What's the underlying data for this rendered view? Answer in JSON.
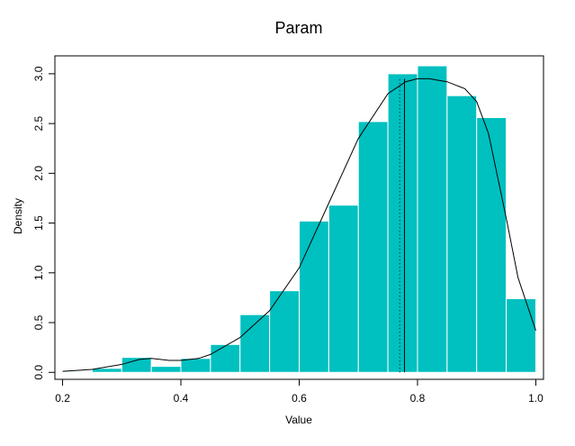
{
  "chart_data": {
    "type": "bar",
    "title": "Param",
    "xlabel": "Value",
    "ylabel": "Density",
    "xlim": [
      0.2,
      1.0
    ],
    "ylim": [
      -0.07,
      3.18
    ],
    "x_ticks": [
      0.2,
      0.4,
      0.6,
      0.8,
      1.0
    ],
    "x_tick_labels": [
      "0.2",
      "0.4",
      "0.6",
      "0.8",
      "1.0"
    ],
    "y_ticks": [
      0.0,
      0.5,
      1.0,
      1.5,
      2.0,
      2.5,
      3.0
    ],
    "y_tick_labels": [
      "0.0",
      "0.5",
      "1.0",
      "1.5",
      "2.0",
      "2.5",
      "3.0"
    ],
    "bar_color": "#00C0C0",
    "bar_edge_color": "#ffffff",
    "bins": [
      {
        "x0": 0.2,
        "x1": 0.25,
        "density": 0.01
      },
      {
        "x0": 0.25,
        "x1": 0.3,
        "density": 0.04
      },
      {
        "x0": 0.3,
        "x1": 0.35,
        "density": 0.15
      },
      {
        "x0": 0.35,
        "x1": 0.4,
        "density": 0.06
      },
      {
        "x0": 0.4,
        "x1": 0.45,
        "density": 0.14
      },
      {
        "x0": 0.45,
        "x1": 0.5,
        "density": 0.28
      },
      {
        "x0": 0.5,
        "x1": 0.55,
        "density": 0.58
      },
      {
        "x0": 0.55,
        "x1": 0.6,
        "density": 0.82
      },
      {
        "x0": 0.6,
        "x1": 0.65,
        "density": 1.52
      },
      {
        "x0": 0.65,
        "x1": 0.7,
        "density": 1.68
      },
      {
        "x0": 0.7,
        "x1": 0.75,
        "density": 2.52
      },
      {
        "x0": 0.75,
        "x1": 0.8,
        "density": 3.0
      },
      {
        "x0": 0.8,
        "x1": 0.85,
        "density": 3.08
      },
      {
        "x0": 0.85,
        "x1": 0.9,
        "density": 2.78
      },
      {
        "x0": 0.9,
        "x1": 0.95,
        "density": 2.56
      },
      {
        "x0": 0.95,
        "x1": 1.0,
        "density": 0.74
      }
    ],
    "density_curve": {
      "x": [
        0.2,
        0.25,
        0.3,
        0.33,
        0.35,
        0.38,
        0.4,
        0.43,
        0.45,
        0.5,
        0.55,
        0.6,
        0.65,
        0.7,
        0.75,
        0.78,
        0.8,
        0.82,
        0.85,
        0.88,
        0.9,
        0.92,
        0.95,
        0.97,
        1.0
      ],
      "y": [
        0.01,
        0.03,
        0.08,
        0.13,
        0.14,
        0.12,
        0.12,
        0.14,
        0.18,
        0.35,
        0.62,
        1.05,
        1.7,
        2.35,
        2.8,
        2.92,
        2.95,
        2.95,
        2.92,
        2.85,
        2.72,
        2.4,
        1.55,
        0.95,
        0.42
      ]
    },
    "vertical_lines": [
      {
        "x": 0.77,
        "style": "dotted"
      },
      {
        "x": 0.778,
        "style": "solid"
      }
    ]
  }
}
